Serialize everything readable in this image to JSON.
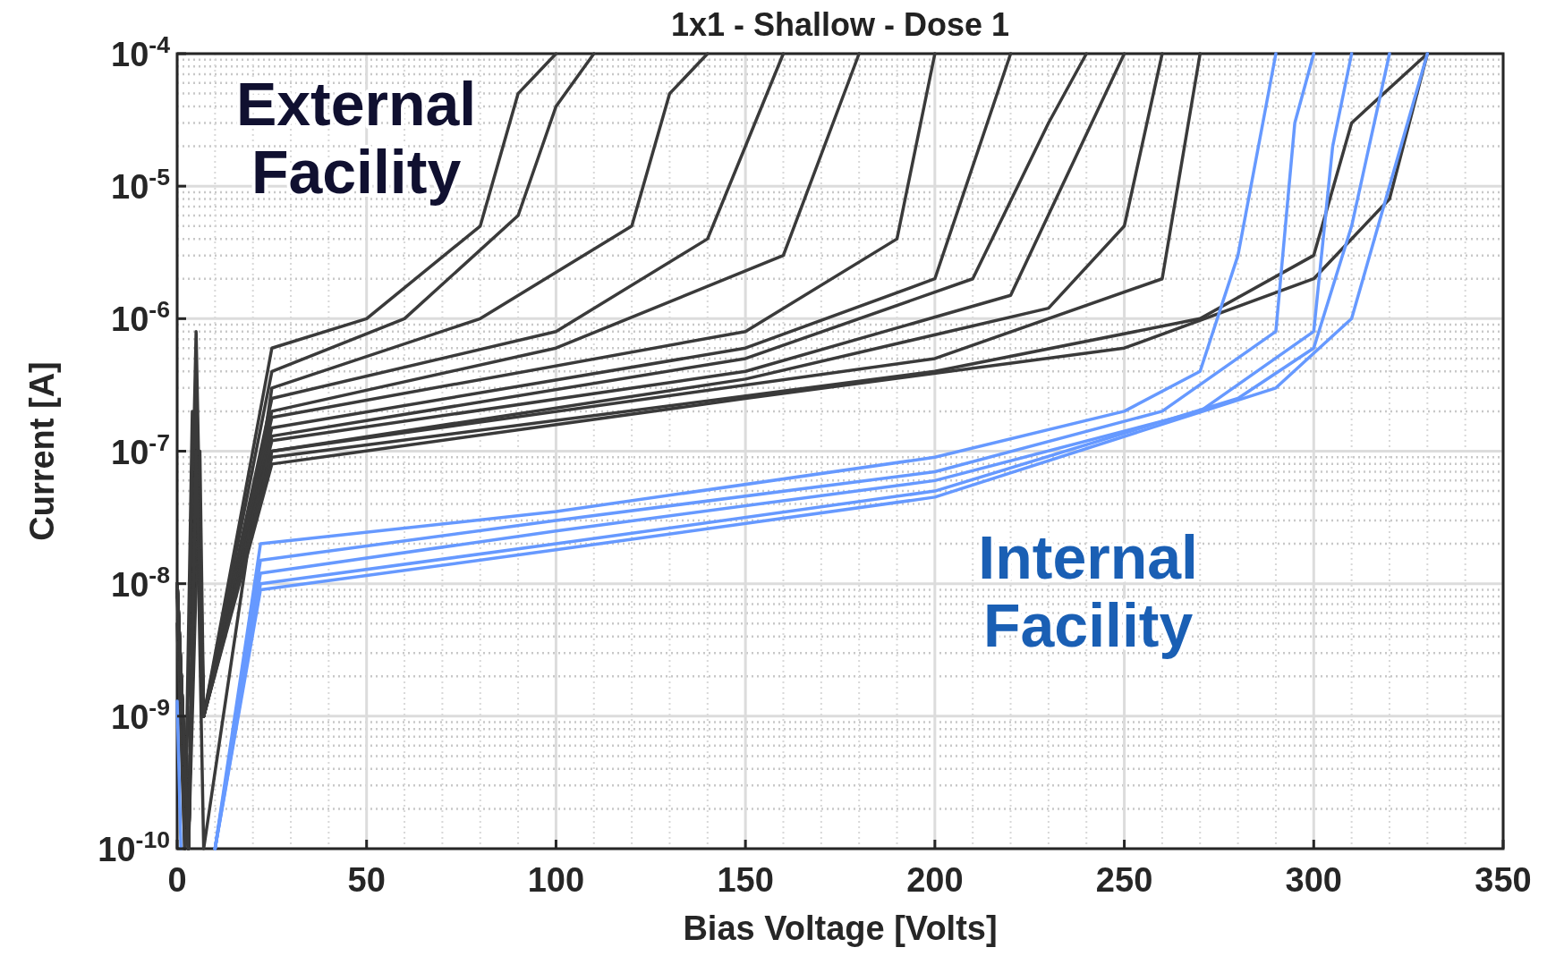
{
  "chart_data": {
    "type": "line",
    "title": "1x1 - Shallow - Dose 1",
    "xlabel": "Bias Voltage [Volts]",
    "ylabel": "Current [A]",
    "log": "y",
    "grid": true,
    "line_style": "solid",
    "xlim": [
      0,
      350
    ],
    "xticks": [
      0,
      50,
      100,
      150,
      200,
      250,
      300,
      350
    ],
    "ylim": [
      1e-10,
      0.0001
    ],
    "yticks": [
      {
        "value": 1e-10,
        "label": "10$^{-10}$"
      },
      {
        "value": 1e-09,
        "label": "10$^{-9}$"
      },
      {
        "value": 1e-08,
        "label": "10$^{-8}$"
      },
      {
        "value": 1e-07,
        "label": "10$^{-7}$"
      },
      {
        "value": 1e-06,
        "label": "10$^{-6}$"
      },
      {
        "value": 1e-05,
        "label": "10$^{-5}$"
      },
      {
        "value": 0.0001,
        "label": "10$^{-4}$"
      }
    ],
    "annotations": [
      "External Facility",
      "Internal Facility"
    ],
    "series": [
      {
        "color": "#3a3a3a",
        "x": [
          0,
          2,
          5,
          7,
          25,
          50,
          80,
          90,
          100
        ],
        "values": [
          1e-08,
          1e-10,
          8e-07,
          1e-09,
          6e-07,
          1e-06,
          5e-06,
          5e-05,
          0.0001
        ]
      },
      {
        "color": "#3a3a3a",
        "x": [
          0,
          2,
          4,
          7,
          25,
          60,
          90,
          100,
          110
        ],
        "values": [
          5e-09,
          1e-10,
          2e-07,
          1e-09,
          4e-07,
          1e-06,
          6e-06,
          4e-05,
          0.0001
        ]
      },
      {
        "color": "#3a3a3a",
        "x": [
          0,
          3,
          5,
          7,
          25,
          80,
          120,
          130,
          140
        ],
        "values": [
          1e-08,
          1e-10,
          1e-07,
          1e-10,
          3e-07,
          1e-06,
          5e-06,
          5e-05,
          0.0001
        ]
      },
      {
        "color": "#3a3a3a",
        "x": [
          0,
          3,
          5,
          7,
          25,
          100,
          140,
          160
        ],
        "values": [
          1e-08,
          1e-10,
          2.5e-07,
          1e-09,
          2.5e-07,
          8e-07,
          4e-06,
          0.0001
        ]
      },
      {
        "color": "#3a3a3a",
        "x": [
          0,
          3,
          6,
          7,
          25,
          100,
          160,
          180
        ],
        "values": [
          8e-09,
          1e-10,
          1e-07,
          1e-09,
          2e-07,
          6e-07,
          3e-06,
          0.0001
        ]
      },
      {
        "color": "#3a3a3a",
        "x": [
          0,
          3,
          5,
          7,
          25,
          150,
          190,
          200
        ],
        "values": [
          1e-08,
          1e-10,
          5e-08,
          1e-09,
          1.8e-07,
          8e-07,
          4e-06,
          0.0001
        ]
      },
      {
        "color": "#3a3a3a",
        "x": [
          0,
          3,
          5,
          7,
          25,
          150,
          200,
          220
        ],
        "values": [
          1e-08,
          1e-10,
          1e-07,
          1e-09,
          1.5e-07,
          6e-07,
          2e-06,
          0.0001
        ]
      },
      {
        "color": "#3a3a3a",
        "x": [
          0,
          3,
          5,
          7,
          25,
          150,
          210,
          230,
          240
        ],
        "values": [
          1e-08,
          1e-10,
          1e-07,
          1e-09,
          1.3e-07,
          5e-07,
          2e-06,
          3e-05,
          0.0001
        ]
      },
      {
        "color": "#3a3a3a",
        "x": [
          0,
          3,
          5,
          7,
          25,
          150,
          220,
          250
        ],
        "values": [
          1e-08,
          1e-10,
          1e-07,
          1e-09,
          1.2e-07,
          4e-07,
          1.5e-06,
          0.0001
        ]
      },
      {
        "color": "#3a3a3a",
        "x": [
          0,
          3,
          5,
          7,
          25,
          150,
          230,
          250,
          260
        ],
        "values": [
          1e-08,
          1e-10,
          1e-07,
          1e-09,
          1e-07,
          3.5e-07,
          1.2e-06,
          5e-06,
          0.0001
        ]
      },
      {
        "color": "#3a3a3a",
        "x": [
          0,
          3,
          5,
          7,
          25,
          200,
          260,
          270
        ],
        "values": [
          1e-08,
          1e-10,
          1e-07,
          1e-09,
          1e-07,
          5e-07,
          2e-06,
          0.0001
        ]
      },
      {
        "color": "#3a3a3a",
        "x": [
          0,
          3,
          5,
          7,
          25,
          200,
          270,
          300,
          310,
          330
        ],
        "values": [
          1e-08,
          1e-10,
          1e-07,
          1e-09,
          9e-08,
          4e-07,
          1e-06,
          3e-06,
          3e-05,
          0.0001
        ]
      },
      {
        "color": "#3a3a3a",
        "x": [
          0,
          3,
          5,
          7,
          25,
          150,
          250,
          300,
          320,
          330
        ],
        "values": [
          1e-08,
          1e-10,
          1e-07,
          1e-09,
          8e-08,
          2.5e-07,
          6e-07,
          2e-06,
          8e-06,
          0.0001
        ]
      },
      {
        "color": "#6699ff",
        "x": [
          0,
          1
        ],
        "values": [
          1.3e-09,
          1e-10
        ]
      },
      {
        "color": "#6699ff",
        "x": [
          10,
          22,
          100,
          200,
          250,
          270,
          280,
          290
        ],
        "values": [
          1e-10,
          2e-08,
          3.5e-08,
          9e-08,
          2e-07,
          4e-07,
          3e-06,
          0.0001
        ]
      },
      {
        "color": "#6699ff",
        "x": [
          10,
          22,
          100,
          200,
          260,
          290,
          295,
          300
        ],
        "values": [
          1e-10,
          1.5e-08,
          3e-08,
          7e-08,
          2e-07,
          8e-07,
          3e-05,
          0.0001
        ]
      },
      {
        "color": "#6699ff",
        "x": [
          10,
          22,
          100,
          200,
          270,
          300,
          305,
          310
        ],
        "values": [
          1e-10,
          1.2e-08,
          2.5e-08,
          6e-08,
          2e-07,
          8e-07,
          2e-05,
          0.0001
        ]
      },
      {
        "color": "#6699ff",
        "x": [
          10,
          22,
          100,
          200,
          280,
          300,
          310,
          320
        ],
        "values": [
          1e-10,
          1e-08,
          2e-08,
          5e-08,
          2.5e-07,
          6e-07,
          5e-06,
          0.0001
        ]
      },
      {
        "color": "#6699ff",
        "x": [
          10,
          22,
          100,
          200,
          290,
          310,
          320,
          330
        ],
        "values": [
          1e-10,
          9e-09,
          1.8e-08,
          4.5e-08,
          3e-07,
          1e-06,
          1e-05,
          0.0001
        ]
      }
    ]
  }
}
